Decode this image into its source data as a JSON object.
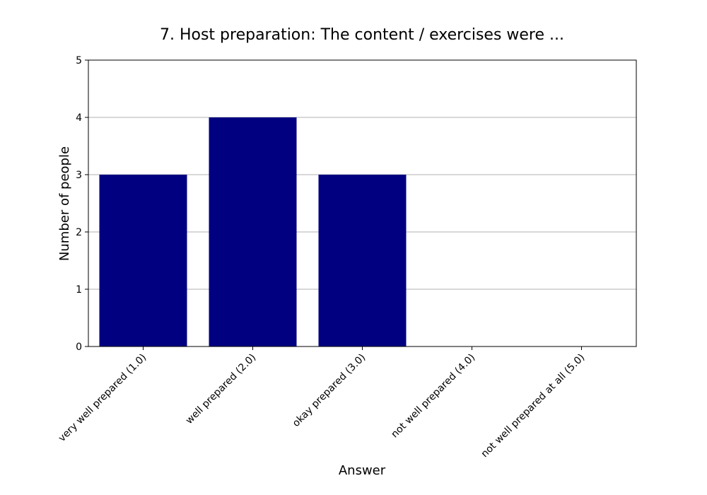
{
  "chart_data": {
    "type": "bar",
    "title": "7. Host preparation: The content / exercises were ...",
    "xlabel": "Answer",
    "ylabel": "Number of people",
    "categories": [
      "very well prepared (1.0)",
      "well prepared (2.0)",
      "okay prepared (3.0)",
      "not well prepared (4.0)",
      "not well prepared at all (5.0)"
    ],
    "values": [
      3,
      4,
      3,
      0,
      0
    ],
    "ylim": [
      0,
      5
    ],
    "yticks": [
      0,
      1,
      2,
      3,
      4,
      5
    ],
    "grid": "y",
    "bar_color": "#000080"
  }
}
